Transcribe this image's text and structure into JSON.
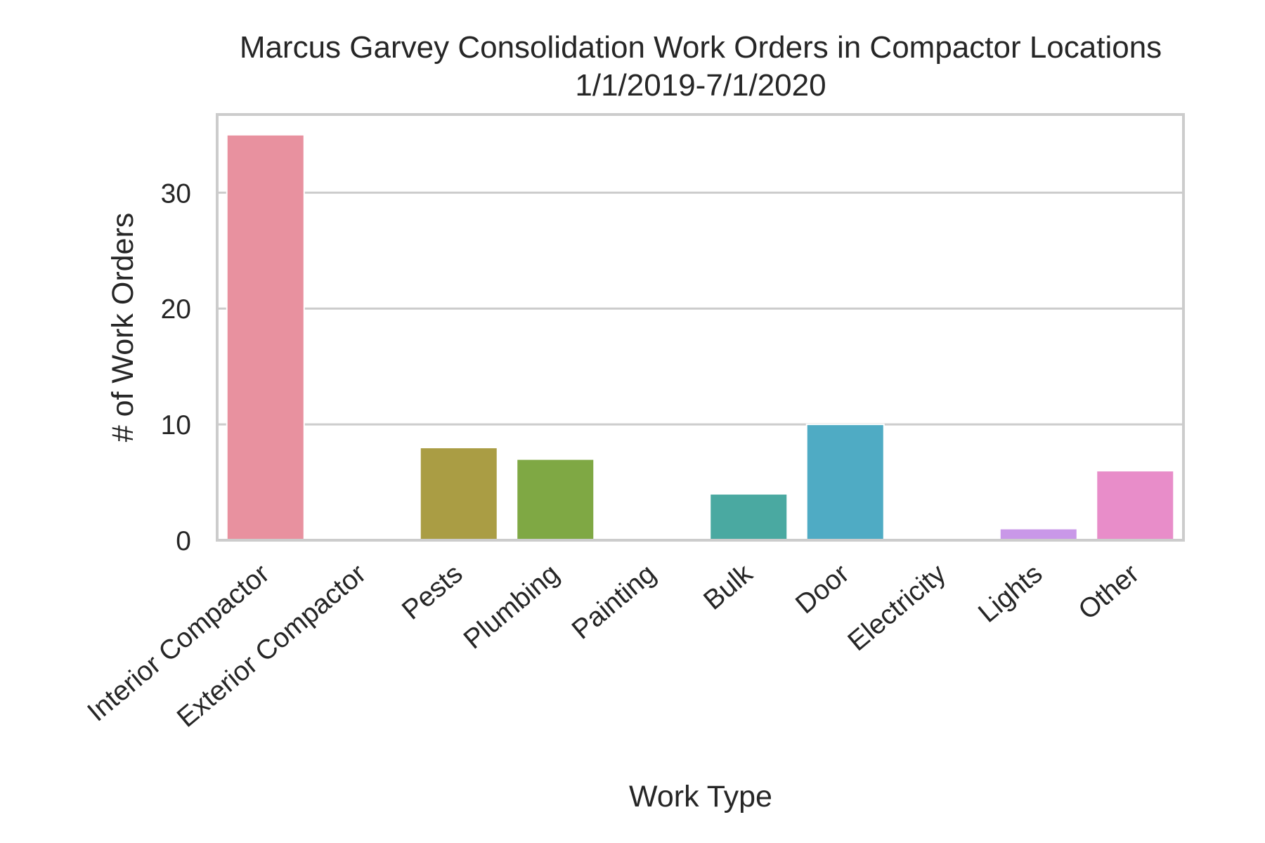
{
  "chart_data": {
    "type": "bar",
    "title": "Marcus Garvey Consolidation Work Orders in Compactor Locations",
    "subtitle": "1/1/2019-7/1/2020",
    "xlabel": "Work Type",
    "ylabel": "# of Work Orders",
    "categories": [
      "Interior Compactor",
      "Exterior Compactor",
      "Pests",
      "Plumbing",
      "Painting",
      "Bulk",
      "Door",
      "Electricity",
      "Lights",
      "Other"
    ],
    "values": [
      35,
      0,
      8,
      7,
      0,
      4,
      10,
      0,
      1,
      6
    ],
    "colors": [
      "#e8919f",
      "#d4998a",
      "#aa9d44",
      "#7fa844",
      "#5dab8f",
      "#4aa9a1",
      "#4fabc4",
      "#7fa8e0",
      "#c998e8",
      "#e88dc9"
    ],
    "ylim": [
      0,
      36.75
    ],
    "yticks": [
      0,
      10,
      20,
      30
    ],
    "grid": true,
    "grid_axis": "y"
  }
}
